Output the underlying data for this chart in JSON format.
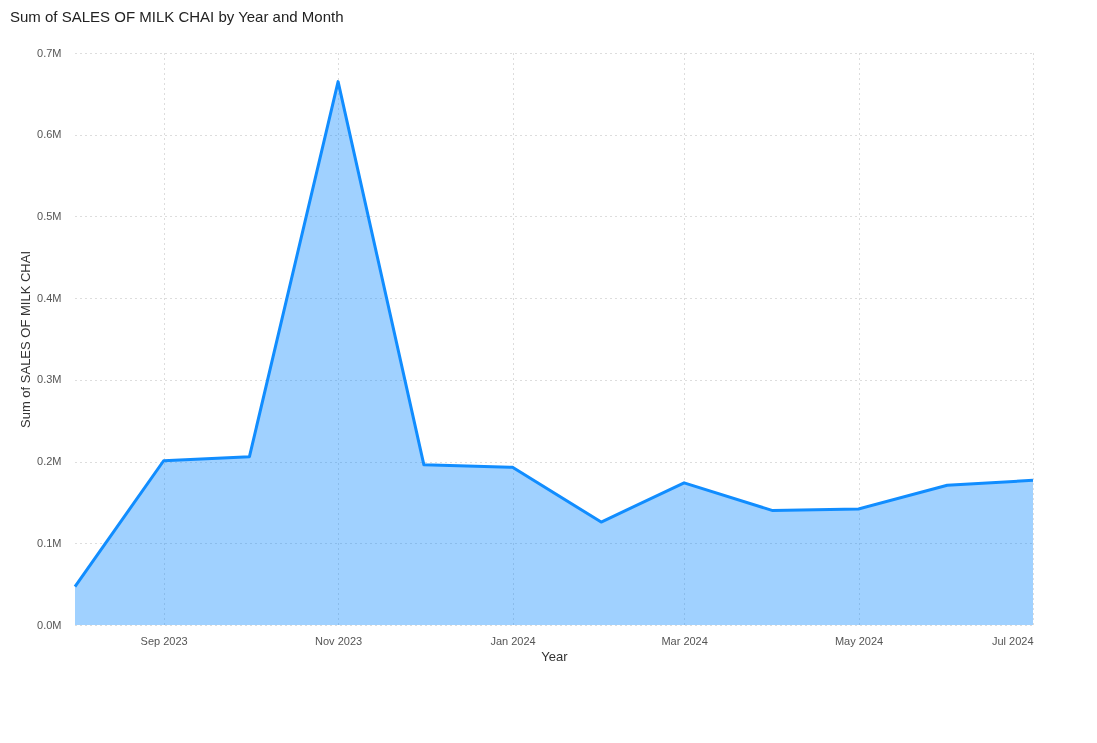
{
  "chart_data": {
    "type": "area",
    "title": "Sum of SALES OF MILK CHAI by Year and Month",
    "xlabel": "Year",
    "ylabel": "Sum of SALES OF MILK CHAI",
    "x": [
      "2023-08",
      "2023-09",
      "2023-10",
      "2023-11",
      "2023-12",
      "2024-01",
      "2024-02",
      "2024-03",
      "2024-04",
      "2024-05",
      "2024-06",
      "2024-07"
    ],
    "series": [
      {
        "color": "#118dff",
        "values": [
          0.047,
          0.201,
          0.206,
          0.665,
          0.196,
          0.193,
          0.126,
          0.174,
          0.14,
          0.142,
          0.171,
          0.177
        ]
      }
    ],
    "xlim": [
      "2023-08",
      "2024-07"
    ],
    "xticks": [
      {
        "value": "2023-09",
        "label": "Sep 2023"
      },
      {
        "value": "2023-11",
        "label": "Nov 2023"
      },
      {
        "value": "2024-01",
        "label": "Jan 2024"
      },
      {
        "value": "2024-03",
        "label": "Mar 2024"
      },
      {
        "value": "2024-05",
        "label": "May 2024"
      },
      {
        "value": "2024-07",
        "label": "Jul 2024"
      }
    ],
    "ylim": [
      0,
      0.7
    ],
    "yticks": [
      {
        "value": 0,
        "label": "0.0M"
      },
      {
        "value": 0.1,
        "label": "0.1M"
      },
      {
        "value": 0.2,
        "label": "0.2M"
      },
      {
        "value": 0.3,
        "label": "0.3M"
      },
      {
        "value": 0.4,
        "label": "0.4M"
      },
      {
        "value": 0.5,
        "label": "0.5M"
      },
      {
        "value": 0.6,
        "label": "0.6M"
      },
      {
        "value": 0.7,
        "label": "0.7M"
      }
    ],
    "grid": true
  }
}
